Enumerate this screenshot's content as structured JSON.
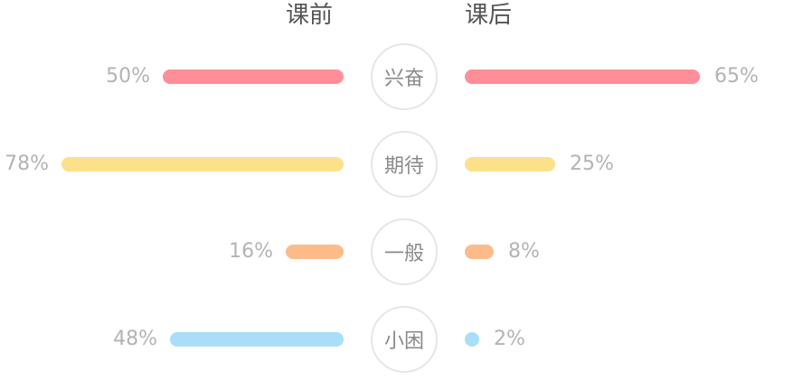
{
  "chart_data": {
    "type": "bar",
    "series": [
      {
        "name": "课前",
        "values": [
          50,
          78,
          16,
          48
        ]
      },
      {
        "name": "课后",
        "values": [
          65,
          25,
          8,
          2
        ]
      }
    ],
    "categories": [
      "兴奋",
      "期待",
      "一般",
      "小困"
    ],
    "value_labels": {
      "before": [
        "50%",
        "78%",
        "16%",
        "48%"
      ],
      "after": [
        "65%",
        "25%",
        "8%",
        "2%"
      ]
    },
    "colors": [
      "#ff8e98",
      "#fde08a",
      "#fdbb8a",
      "#a9def8"
    ],
    "xlim": [
      0,
      100
    ]
  }
}
